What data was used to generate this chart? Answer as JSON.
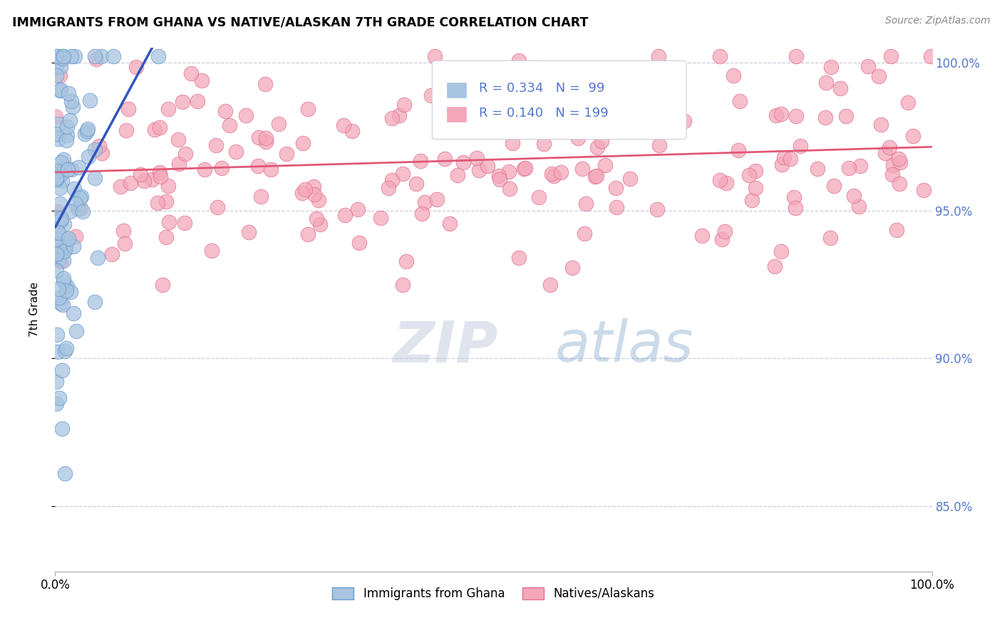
{
  "title": "IMMIGRANTS FROM GHANA VS NATIVE/ALASKAN 7TH GRADE CORRELATION CHART",
  "source_text": "Source: ZipAtlas.com",
  "ylabel": "7th Grade",
  "watermark_zip": "ZIP",
  "watermark_atlas": "atlas",
  "xlim": [
    0.0,
    1.0
  ],
  "ylim": [
    0.828,
    1.005
  ],
  "yticks": [
    0.85,
    0.9,
    0.95,
    1.0
  ],
  "ytick_labels": [
    "85.0%",
    "90.0%",
    "95.0%",
    "100.0%"
  ],
  "xticks": [
    0.0,
    1.0
  ],
  "xtick_labels": [
    "0.0%",
    "100.0%"
  ],
  "legend_entries": [
    {
      "label": "Immigrants from Ghana",
      "color": "#a8c4e0"
    },
    {
      "label": "Natives/Alaskans",
      "color": "#f4a7b9"
    }
  ],
  "r_blue": 0.334,
  "n_blue": 99,
  "r_pink": 0.14,
  "n_pink": 199,
  "blue_dot_fill": "#a8c4e0",
  "blue_dot_edge": "#6699cc",
  "pink_dot_fill": "#f4a7b9",
  "pink_dot_edge": "#e07090",
  "trend_blue_color": "#3355bb",
  "trend_pink_color": "#e05878",
  "grid_color": "#ccccdd",
  "right_tick_color": "#5577cc",
  "source_color": "#888888",
  "legend_box_color": "#e8eef8"
}
